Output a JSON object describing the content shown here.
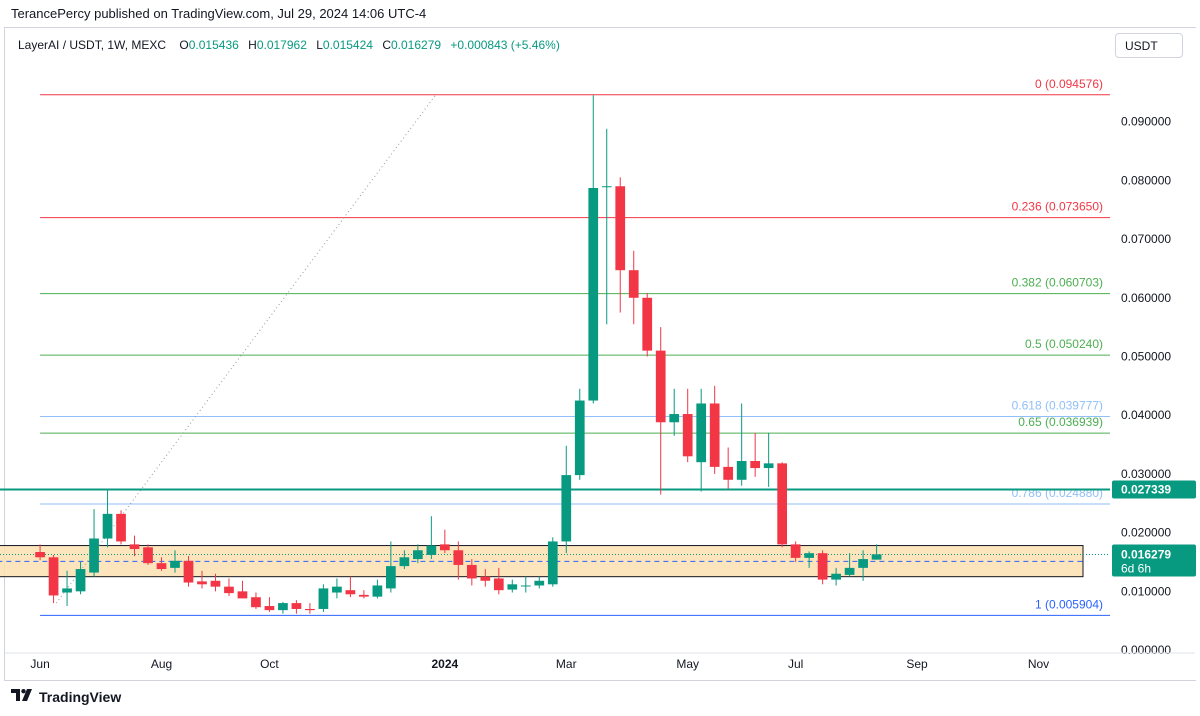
{
  "publisher": "TerancePercy published on TradingView.com, Jul 29, 2024 14:06 UTC-4",
  "legend": {
    "symbol": "LayerAI / USDT, 1W, MEXC",
    "o_label": "O",
    "o": "0.015436",
    "h_label": "H",
    "h": "0.017962",
    "l_label": "L",
    "l": "0.015424",
    "c_label": "C",
    "c": "0.016279",
    "change": "+0.000843 (+5.46%)"
  },
  "currency_button": "USDT",
  "footer": {
    "brand": "TradingView",
    "logo_icon": "tradingview-logo-icon"
  },
  "colors": {
    "up": "#089981",
    "down": "#f23645",
    "fib_red": "#f23645",
    "fib_green": "#4caf50",
    "fib_lightblue": "#90bff9",
    "fib_blue": "#2962ff",
    "zone_fill": "#fbe0b0",
    "zone_border": "#131722",
    "hline": "#089981"
  },
  "chart_data": {
    "type": "candlestick",
    "timeframe": "1W",
    "y_axis": {
      "ticks": [
        "0.090000",
        "0.080000",
        "0.070000",
        "0.060000",
        "0.050000",
        "0.040000",
        "0.030000",
        "0.020000",
        "0.010000",
        "0.000000"
      ],
      "tick_values": [
        0.09,
        0.08,
        0.07,
        0.06,
        0.05,
        0.04,
        0.03,
        0.02,
        0.01,
        0.0
      ],
      "range": [
        -0.0005,
        0.1005
      ]
    },
    "x_axis": {
      "labels": [
        {
          "text": "Jun",
          "week": 0,
          "bold": false
        },
        {
          "text": "Aug",
          "week": 9,
          "bold": false
        },
        {
          "text": "Oct",
          "week": 17,
          "bold": false
        },
        {
          "text": "2024",
          "week": 30,
          "bold": true
        },
        {
          "text": "Mar",
          "week": 39,
          "bold": false
        },
        {
          "text": "May",
          "week": 48,
          "bold": false
        },
        {
          "text": "Jul",
          "week": 56,
          "bold": false
        },
        {
          "text": "Sep",
          "week": 65,
          "bold": false
        },
        {
          "text": "Nov",
          "week": 74,
          "bold": false
        }
      ],
      "week_range": [
        -2.6,
        79.3
      ]
    },
    "candles": [
      {
        "o": 0.0167,
        "h": 0.018,
        "l": 0.0153,
        "c": 0.0158
      },
      {
        "o": 0.0158,
        "h": 0.0162,
        "l": 0.008,
        "c": 0.0093
      },
      {
        "o": 0.0098,
        "h": 0.0135,
        "l": 0.0075,
        "c": 0.0105
      },
      {
        "o": 0.01,
        "h": 0.015,
        "l": 0.0095,
        "c": 0.0138
      },
      {
        "o": 0.0132,
        "h": 0.024,
        "l": 0.0125,
        "c": 0.019
      },
      {
        "o": 0.019,
        "h": 0.0273,
        "l": 0.0175,
        "c": 0.0232
      },
      {
        "o": 0.0232,
        "h": 0.0238,
        "l": 0.018,
        "c": 0.0185
      },
      {
        "o": 0.018,
        "h": 0.0195,
        "l": 0.016,
        "c": 0.0172
      },
      {
        "o": 0.0175,
        "h": 0.018,
        "l": 0.0145,
        "c": 0.0148
      },
      {
        "o": 0.0148,
        "h": 0.0158,
        "l": 0.0135,
        "c": 0.0138
      },
      {
        "o": 0.014,
        "h": 0.017,
        "l": 0.0132,
        "c": 0.0152
      },
      {
        "o": 0.0152,
        "h": 0.016,
        "l": 0.0108,
        "c": 0.0115
      },
      {
        "o": 0.0117,
        "h": 0.0135,
        "l": 0.0105,
        "c": 0.0112
      },
      {
        "o": 0.0118,
        "h": 0.013,
        "l": 0.01,
        "c": 0.0108
      },
      {
        "o": 0.0108,
        "h": 0.0122,
        "l": 0.0092,
        "c": 0.0097
      },
      {
        "o": 0.01,
        "h": 0.0118,
        "l": 0.009,
        "c": 0.0088
      },
      {
        "o": 0.009,
        "h": 0.0098,
        "l": 0.007,
        "c": 0.0073
      },
      {
        "o": 0.0075,
        "h": 0.009,
        "l": 0.0065,
        "c": 0.0068
      },
      {
        "o": 0.0068,
        "h": 0.0082,
        "l": 0.0062,
        "c": 0.008
      },
      {
        "o": 0.008,
        "h": 0.0085,
        "l": 0.0062,
        "c": 0.007
      },
      {
        "o": 0.007,
        "h": 0.008,
        "l": 0.0062,
        "c": 0.0068
      },
      {
        "o": 0.007,
        "h": 0.0112,
        "l": 0.0065,
        "c": 0.0105
      },
      {
        "o": 0.0098,
        "h": 0.0122,
        "l": 0.0088,
        "c": 0.0108
      },
      {
        "o": 0.0102,
        "h": 0.0125,
        "l": 0.009,
        "c": 0.0095
      },
      {
        "o": 0.0094,
        "h": 0.0102,
        "l": 0.0088,
        "c": 0.0091
      },
      {
        "o": 0.0091,
        "h": 0.012,
        "l": 0.0088,
        "c": 0.011
      },
      {
        "o": 0.0105,
        "h": 0.0185,
        "l": 0.0098,
        "c": 0.0143
      },
      {
        "o": 0.0143,
        "h": 0.017,
        "l": 0.0138,
        "c": 0.0158
      },
      {
        "o": 0.0155,
        "h": 0.018,
        "l": 0.0148,
        "c": 0.017
      },
      {
        "o": 0.0162,
        "h": 0.0228,
        "l": 0.0155,
        "c": 0.0178
      },
      {
        "o": 0.018,
        "h": 0.0205,
        "l": 0.0165,
        "c": 0.017
      },
      {
        "o": 0.017,
        "h": 0.0185,
        "l": 0.012,
        "c": 0.0145
      },
      {
        "o": 0.0145,
        "h": 0.0155,
        "l": 0.011,
        "c": 0.0122
      },
      {
        "o": 0.0125,
        "h": 0.0138,
        "l": 0.0108,
        "c": 0.0118
      },
      {
        "o": 0.0122,
        "h": 0.014,
        "l": 0.0095,
        "c": 0.0102
      },
      {
        "o": 0.0103,
        "h": 0.012,
        "l": 0.0098,
        "c": 0.0112
      },
      {
        "o": 0.011,
        "h": 0.0125,
        "l": 0.0098,
        "c": 0.011
      },
      {
        "o": 0.011,
        "h": 0.0125,
        "l": 0.0105,
        "c": 0.0118
      },
      {
        "o": 0.0112,
        "h": 0.0192,
        "l": 0.0108,
        "c": 0.0185
      },
      {
        "o": 0.0185,
        "h": 0.0348,
        "l": 0.0165,
        "c": 0.0298
      },
      {
        "o": 0.0298,
        "h": 0.0445,
        "l": 0.029,
        "c": 0.0425
      },
      {
        "o": 0.0425,
        "h": 0.0945,
        "l": 0.042,
        "c": 0.0787
      },
      {
        "o": 0.079,
        "h": 0.0888,
        "l": 0.0555,
        "c": 0.079
      },
      {
        "o": 0.079,
        "h": 0.0805,
        "l": 0.0575,
        "c": 0.0647
      },
      {
        "o": 0.0647,
        "h": 0.068,
        "l": 0.0555,
        "c": 0.06
      },
      {
        "o": 0.06,
        "h": 0.0608,
        "l": 0.05,
        "c": 0.051
      },
      {
        "o": 0.051,
        "h": 0.055,
        "l": 0.0265,
        "c": 0.0388
      },
      {
        "o": 0.0388,
        "h": 0.0445,
        "l": 0.0365,
        "c": 0.0402
      },
      {
        "o": 0.0402,
        "h": 0.0445,
        "l": 0.032,
        "c": 0.033
      },
      {
        "o": 0.032,
        "h": 0.0445,
        "l": 0.027,
        "c": 0.042
      },
      {
        "o": 0.042,
        "h": 0.045,
        "l": 0.03,
        "c": 0.0312
      },
      {
        "o": 0.0312,
        "h": 0.0345,
        "l": 0.0275,
        "c": 0.029
      },
      {
        "o": 0.029,
        "h": 0.042,
        "l": 0.028,
        "c": 0.0322
      },
      {
        "o": 0.0322,
        "h": 0.037,
        "l": 0.0295,
        "c": 0.031
      },
      {
        "o": 0.031,
        "h": 0.037,
        "l": 0.0278,
        "c": 0.0318
      },
      {
        "o": 0.0318,
        "h": 0.032,
        "l": 0.0175,
        "c": 0.018
      },
      {
        "o": 0.018,
        "h": 0.0185,
        "l": 0.015,
        "c": 0.0157
      },
      {
        "o": 0.0157,
        "h": 0.0168,
        "l": 0.014,
        "c": 0.0165
      },
      {
        "o": 0.0165,
        "h": 0.017,
        "l": 0.0112,
        "c": 0.012
      },
      {
        "o": 0.012,
        "h": 0.014,
        "l": 0.011,
        "c": 0.013
      },
      {
        "o": 0.0128,
        "h": 0.0165,
        "l": 0.0125,
        "c": 0.014
      },
      {
        "o": 0.014,
        "h": 0.017,
        "l": 0.0118,
        "c": 0.0155
      },
      {
        "o": 0.0154,
        "h": 0.018,
        "l": 0.0154,
        "c": 0.0163
      }
    ],
    "fib_levels": [
      {
        "ratio": "0",
        "value": 0.094576,
        "label": "0 (0.094576)",
        "color": "#f23645"
      },
      {
        "ratio": "0.236",
        "value": 0.07365,
        "label": "0.236 (0.073650)",
        "color": "#f23645"
      },
      {
        "ratio": "0.382",
        "value": 0.060703,
        "label": "0.382 (0.060703)",
        "color": "#4caf50"
      },
      {
        "ratio": "0.5",
        "value": 0.05024,
        "label": "0.5 (0.050240)",
        "color": "#4caf50"
      },
      {
        "ratio": "0.618",
        "value": 0.039777,
        "label": "0.618 (0.039777)",
        "color": "#90bff9"
      },
      {
        "ratio": "0.65",
        "value": 0.036939,
        "label": "0.65 (0.036939)",
        "color": "#4caf50"
      },
      {
        "ratio": "0.786",
        "value": 0.02488,
        "label": "0.786 (0.024880)",
        "color": "#90bff9"
      },
      {
        "ratio": "1",
        "value": 0.005904,
        "label": "1 (0.005904)",
        "color": "#2962ff"
      }
    ],
    "fib_start_week": 0,
    "support_zone": {
      "top": 0.0178,
      "bottom": 0.0125,
      "mid": 0.0151,
      "start_week": -4.5
    },
    "horizontal_line": {
      "value": 0.027339,
      "label": "0.027339"
    },
    "diagonal_line": {
      "from": {
        "week": 1.2,
        "value": 0.008
      },
      "to": {
        "week": 29.3,
        "value": 0.0945
      }
    },
    "last_price": {
      "value": 0.016279,
      "label": "0.016279",
      "countdown": "6d 6h"
    }
  }
}
